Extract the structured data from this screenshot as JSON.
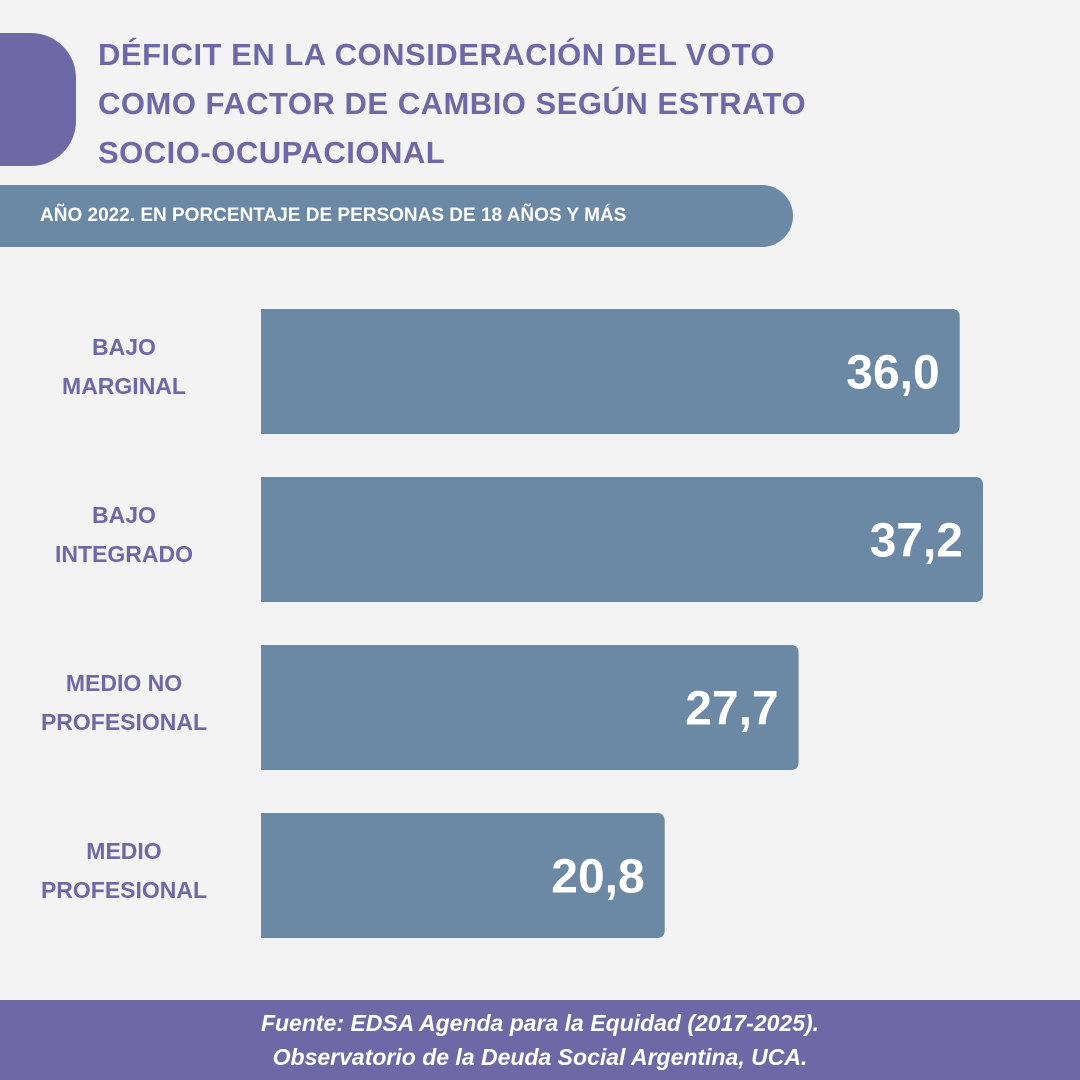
{
  "header": {
    "title_lines": [
      "DÉFICIT EN LA CONSIDERACIÓN DEL VOTO",
      "COMO FACTOR DE CAMBIO SEGÚN ESTRATO",
      "SOCIO-OCUPACIONAL"
    ],
    "subtitle": "AÑO 2022. EN PORCENTAJE DE PERSONAS DE 18 AÑOS Y MÁS"
  },
  "chart_data": {
    "type": "bar",
    "orientation": "horizontal",
    "categories": [
      [
        "BAJO",
        "MARGINAL"
      ],
      [
        "BAJO",
        "INTEGRADO"
      ],
      [
        "MEDIO NO",
        "PROFESIONAL"
      ],
      [
        "MEDIO",
        "PROFESIONAL"
      ]
    ],
    "values": [
      36.0,
      37.2,
      27.7,
      20.8
    ],
    "value_labels": [
      "36,0",
      "37,2",
      "27,7",
      "20,8"
    ],
    "xlim": [
      0,
      37.2
    ],
    "grid": false,
    "legend": "none",
    "bar_color": "#6b88a5",
    "label_color": "#6c69a6",
    "value_color": "#ffffff"
  },
  "footer": {
    "line1": "Fuente: EDSA Agenda para la Equidad (2017-2025).",
    "line2": "Observatorio de la Deuda Social Argentina, UCA."
  },
  "colors": {
    "accent": "#6c69a6",
    "bar": "#6b88a5",
    "background": "#f3f3f3"
  }
}
